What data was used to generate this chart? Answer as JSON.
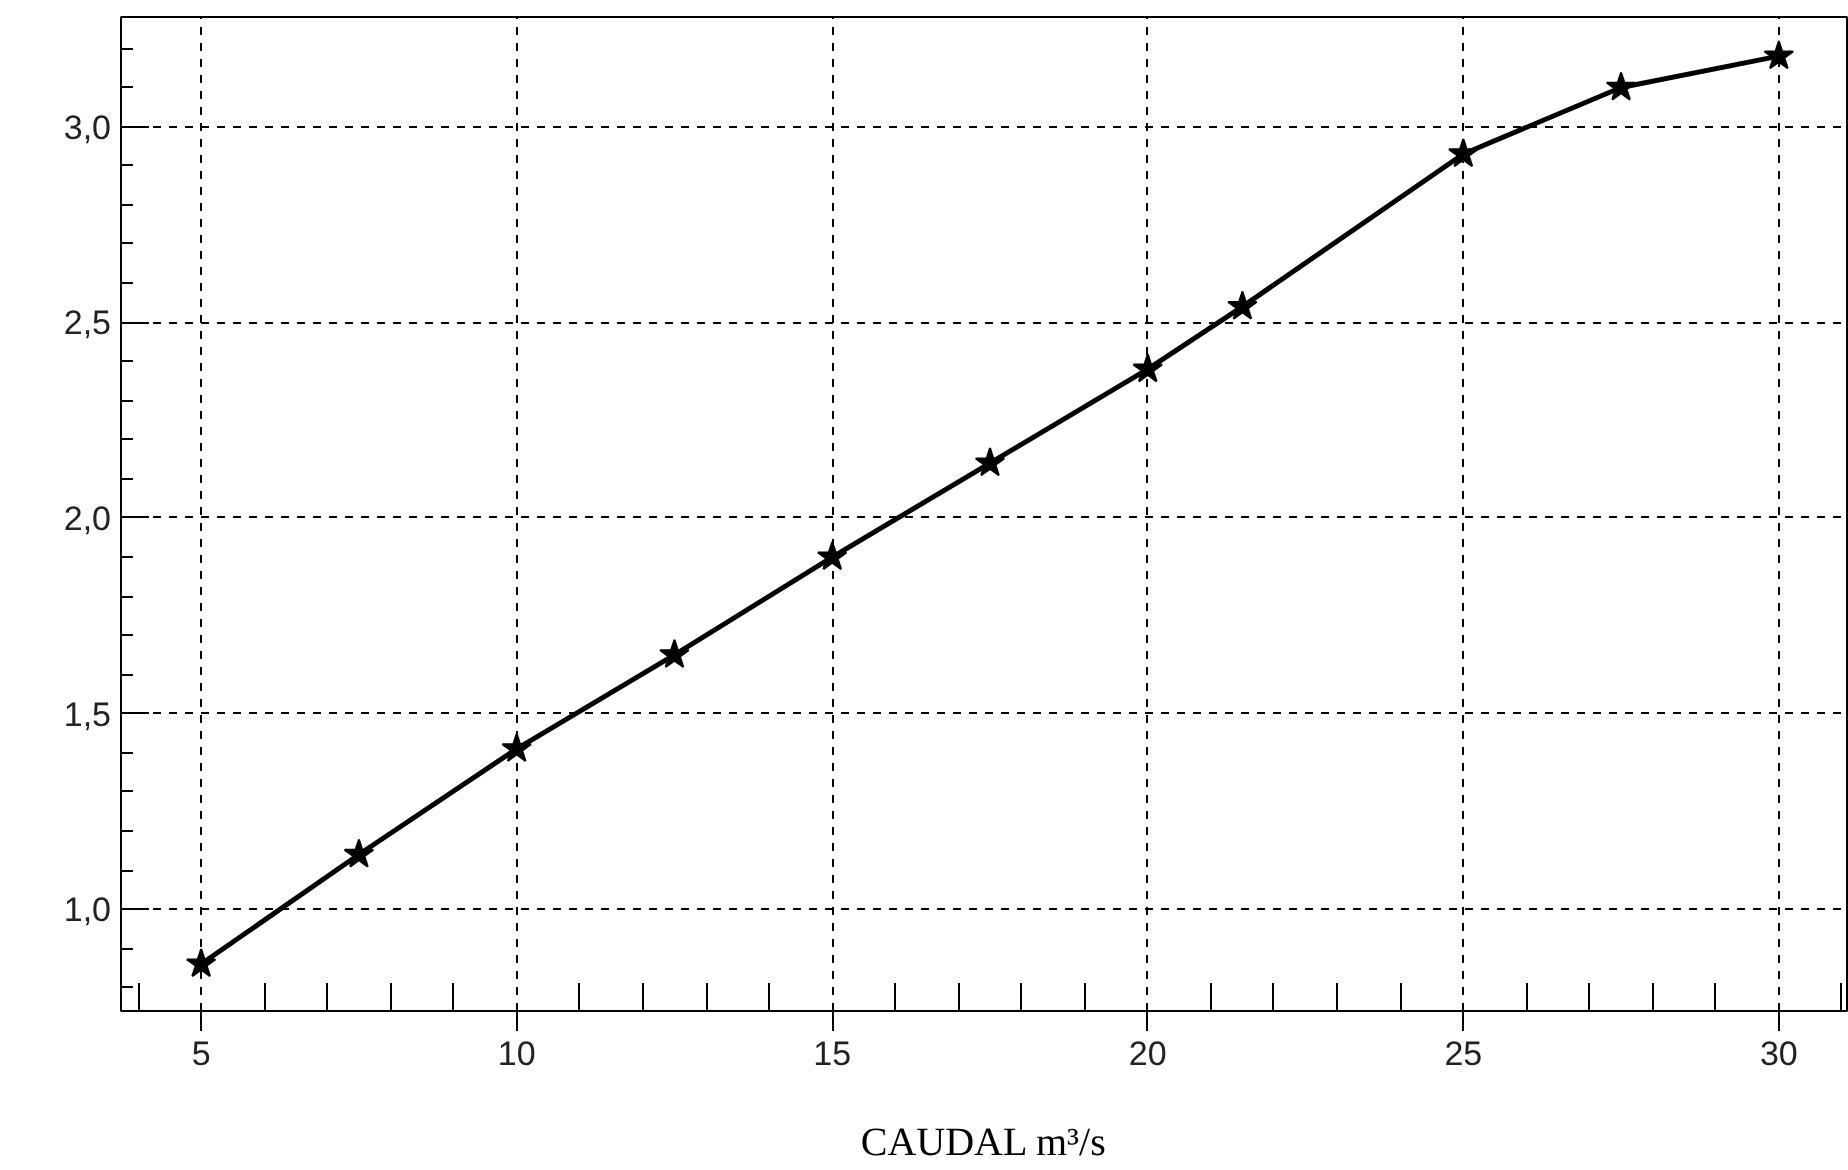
{
  "chart_data": {
    "type": "line",
    "xlabel": "CAUDAL m³/s",
    "x": [
      5,
      7.5,
      10,
      12.5,
      15,
      17.5,
      20,
      21.5,
      25,
      27.5,
      30
    ],
    "series": [
      {
        "color": "#000000",
        "values": [
          0.86,
          1.14,
          1.41,
          1.65,
          1.9,
          2.14,
          2.38,
          2.54,
          2.93,
          3.1,
          3.18
        ]
      }
    ],
    "marker": "star",
    "line_style": "solid",
    "grid": true,
    "xlim": [
      3.73,
      31.08
    ],
    "ylim": [
      0.74,
      3.28
    ],
    "xticks": [
      {
        "value": 4,
        "label": null
      },
      5,
      {
        "value": 6,
        "label": null
      },
      {
        "value": 7,
        "label": null
      },
      {
        "value": 8,
        "label": null
      },
      {
        "value": 9,
        "label": null
      },
      10,
      {
        "value": 11,
        "label": null
      },
      {
        "value": 12,
        "label": null
      },
      {
        "value": 13,
        "label": null
      },
      {
        "value": 14,
        "label": null
      },
      15,
      {
        "value": 16,
        "label": null
      },
      {
        "value": 17,
        "label": null
      },
      {
        "value": 18,
        "label": null
      },
      {
        "value": 19,
        "label": null
      },
      20,
      {
        "value": 21,
        "label": null
      },
      {
        "value": 22,
        "label": null
      },
      {
        "value": 23,
        "label": null
      },
      {
        "value": 24,
        "label": null
      },
      25,
      {
        "value": 26,
        "label": null
      },
      {
        "value": 27,
        "label": null
      },
      {
        "value": 28,
        "label": null
      },
      {
        "value": 29,
        "label": null
      },
      30,
      {
        "value": 31,
        "label": null
      }
    ],
    "yticks": [
      {
        "value": 0.8,
        "label": null
      },
      {
        "value": 0.9,
        "label": null
      },
      {
        "value": 1.0,
        "label": "1,0"
      },
      {
        "value": 1.1,
        "label": null
      },
      {
        "value": 1.2,
        "label": null
      },
      {
        "value": 1.3,
        "label": null
      },
      {
        "value": 1.4,
        "label": null
      },
      {
        "value": 1.5,
        "label": "1,5"
      },
      {
        "value": 1.6,
        "label": null
      },
      {
        "value": 1.7,
        "label": null
      },
      {
        "value": 1.8,
        "label": null
      },
      {
        "value": 1.9,
        "label": null
      },
      {
        "value": 2.0,
        "label": "2,0"
      },
      {
        "value": 2.1,
        "label": null
      },
      {
        "value": 2.2,
        "label": null
      },
      {
        "value": 2.3,
        "label": null
      },
      {
        "value": 2.4,
        "label": null
      },
      {
        "value": 2.5,
        "label": "2,5"
      },
      {
        "value": 2.6,
        "label": null
      },
      {
        "value": 2.7,
        "label": null
      },
      {
        "value": 2.8,
        "label": null
      },
      {
        "value": 2.9,
        "label": null
      },
      {
        "value": 3.0,
        "label": "3,0"
      },
      {
        "value": 3.1,
        "label": null
      },
      {
        "value": 3.2,
        "label": null
      }
    ]
  }
}
